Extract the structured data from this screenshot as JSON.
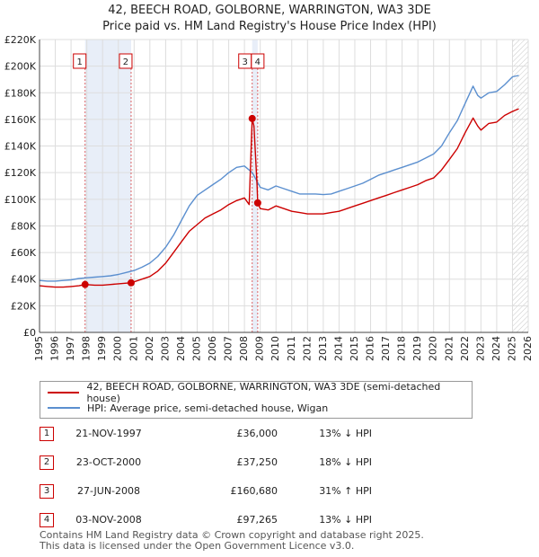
{
  "title_line1": "42, BEECH ROAD, GOLBORNE, WARRINGTON, WA3 3DE",
  "title_line2": "Price paid vs. HM Land Registry's House Price Index (HPI)",
  "colors": {
    "property": "#cc0000",
    "hpi": "#5b8fcf",
    "shade": "#e8eef8",
    "grid": "#dddddd"
  },
  "chart_data": {
    "type": "line",
    "title": "42, BEECH ROAD, GOLBORNE, WARRINGTON, WA3 3DE — Price paid vs. HM Land Registry's House Price Index (HPI)",
    "xlabel": "",
    "ylabel": "",
    "xlim": [
      1995,
      2026
    ],
    "ylim": [
      0,
      220000
    ],
    "x_ticks": [
      1995,
      1996,
      1997,
      1998,
      1999,
      2000,
      2001,
      2002,
      2003,
      2004,
      2005,
      2006,
      2007,
      2008,
      2009,
      2010,
      2011,
      2012,
      2013,
      2014,
      2015,
      2016,
      2017,
      2018,
      2019,
      2020,
      2021,
      2022,
      2023,
      2024,
      2025,
      2026
    ],
    "y_ticks": [
      {
        "value": 0,
        "label": "£0"
      },
      {
        "value": 20000,
        "label": "£20K"
      },
      {
        "value": 40000,
        "label": "£40K"
      },
      {
        "value": 60000,
        "label": "£60K"
      },
      {
        "value": 80000,
        "label": "£80K"
      },
      {
        "value": 100000,
        "label": "£100K"
      },
      {
        "value": 120000,
        "label": "£120K"
      },
      {
        "value": 140000,
        "label": "£140K"
      },
      {
        "value": 160000,
        "label": "£160K"
      },
      {
        "value": 180000,
        "label": "£180K"
      },
      {
        "value": 200000,
        "label": "£200K"
      },
      {
        "value": 220000,
        "label": "£220K"
      }
    ],
    "shaded_ranges": [
      [
        1997.89,
        2000.81
      ],
      [
        2008.49,
        2008.84
      ]
    ],
    "hatched_from": 2025.0,
    "series": [
      {
        "name": "42, BEECH ROAD, GOLBORNE, WARRINGTON, WA3 3DE (semi-detached house)",
        "color": "#cc0000",
        "points": [
          [
            1995.0,
            35000
          ],
          [
            1995.5,
            34500
          ],
          [
            1996.0,
            34000
          ],
          [
            1996.5,
            34000
          ],
          [
            1997.0,
            34500
          ],
          [
            1997.5,
            35000
          ],
          [
            1997.89,
            36000
          ],
          [
            1998.5,
            35500
          ],
          [
            1999.0,
            35500
          ],
          [
            1999.5,
            36000
          ],
          [
            2000.0,
            36500
          ],
          [
            2000.5,
            37000
          ],
          [
            2000.81,
            37250
          ],
          [
            2001.0,
            38000
          ],
          [
            2001.5,
            40000
          ],
          [
            2002.0,
            42000
          ],
          [
            2002.5,
            46000
          ],
          [
            2003.0,
            52000
          ],
          [
            2003.5,
            60000
          ],
          [
            2004.0,
            68000
          ],
          [
            2004.5,
            76000
          ],
          [
            2005.0,
            81000
          ],
          [
            2005.5,
            86000
          ],
          [
            2006.0,
            89000
          ],
          [
            2006.5,
            92000
          ],
          [
            2007.0,
            96000
          ],
          [
            2007.5,
            99000
          ],
          [
            2008.0,
            101000
          ],
          [
            2008.3,
            96000
          ],
          [
            2008.49,
            160680
          ],
          [
            2008.6,
            155000
          ],
          [
            2008.8,
            110000
          ],
          [
            2008.84,
            97265
          ],
          [
            2009.0,
            93000
          ],
          [
            2009.5,
            92000
          ],
          [
            2010.0,
            95000
          ],
          [
            2010.5,
            93000
          ],
          [
            2011.0,
            91000
          ],
          [
            2011.5,
            90000
          ],
          [
            2012.0,
            89000
          ],
          [
            2012.5,
            89000
          ],
          [
            2013.0,
            89000
          ],
          [
            2013.5,
            90000
          ],
          [
            2014.0,
            91000
          ],
          [
            2014.5,
            93000
          ],
          [
            2015.0,
            95000
          ],
          [
            2015.5,
            97000
          ],
          [
            2016.0,
            99000
          ],
          [
            2016.5,
            101000
          ],
          [
            2017.0,
            103000
          ],
          [
            2017.5,
            105000
          ],
          [
            2018.0,
            107000
          ],
          [
            2018.5,
            109000
          ],
          [
            2019.0,
            111000
          ],
          [
            2019.5,
            114000
          ],
          [
            2020.0,
            116000
          ],
          [
            2020.5,
            122000
          ],
          [
            2021.0,
            130000
          ],
          [
            2021.5,
            138000
          ],
          [
            2022.0,
            150000
          ],
          [
            2022.5,
            161000
          ],
          [
            2022.8,
            155000
          ],
          [
            2023.0,
            152000
          ],
          [
            2023.5,
            157000
          ],
          [
            2024.0,
            158000
          ],
          [
            2024.5,
            163000
          ],
          [
            2025.0,
            166000
          ],
          [
            2025.4,
            168000
          ]
        ]
      },
      {
        "name": "HPI: Average price, semi-detached house, Wigan",
        "color": "#5b8fcf",
        "points": [
          [
            1995.0,
            39000
          ],
          [
            1995.5,
            38500
          ],
          [
            1996.0,
            38500
          ],
          [
            1996.5,
            39000
          ],
          [
            1997.0,
            39500
          ],
          [
            1997.5,
            40500
          ],
          [
            1998.0,
            41000
          ],
          [
            1998.5,
            41500
          ],
          [
            1999.0,
            42000
          ],
          [
            1999.5,
            42500
          ],
          [
            2000.0,
            43500
          ],
          [
            2000.5,
            45000
          ],
          [
            2001.0,
            46500
          ],
          [
            2001.5,
            49000
          ],
          [
            2002.0,
            52000
          ],
          [
            2002.5,
            57000
          ],
          [
            2003.0,
            64000
          ],
          [
            2003.5,
            73000
          ],
          [
            2004.0,
            84000
          ],
          [
            2004.5,
            95000
          ],
          [
            2005.0,
            103000
          ],
          [
            2005.5,
            107000
          ],
          [
            2006.0,
            111000
          ],
          [
            2006.5,
            115000
          ],
          [
            2007.0,
            120000
          ],
          [
            2007.5,
            124000
          ],
          [
            2008.0,
            125000
          ],
          [
            2008.5,
            120000
          ],
          [
            2009.0,
            109000
          ],
          [
            2009.5,
            107000
          ],
          [
            2010.0,
            110000
          ],
          [
            2010.5,
            108000
          ],
          [
            2011.0,
            106000
          ],
          [
            2011.5,
            104000
          ],
          [
            2012.0,
            104000
          ],
          [
            2012.5,
            104000
          ],
          [
            2013.0,
            103500
          ],
          [
            2013.5,
            104000
          ],
          [
            2014.0,
            106000
          ],
          [
            2014.5,
            108000
          ],
          [
            2015.0,
            110000
          ],
          [
            2015.5,
            112000
          ],
          [
            2016.0,
            115000
          ],
          [
            2016.5,
            118000
          ],
          [
            2017.0,
            120000
          ],
          [
            2017.5,
            122000
          ],
          [
            2018.0,
            124000
          ],
          [
            2018.5,
            126000
          ],
          [
            2019.0,
            128000
          ],
          [
            2019.5,
            131000
          ],
          [
            2020.0,
            134000
          ],
          [
            2020.5,
            140000
          ],
          [
            2021.0,
            150000
          ],
          [
            2021.5,
            159000
          ],
          [
            2022.0,
            172000
          ],
          [
            2022.5,
            185000
          ],
          [
            2022.8,
            178000
          ],
          [
            2023.0,
            176000
          ],
          [
            2023.5,
            180000
          ],
          [
            2024.0,
            181000
          ],
          [
            2024.5,
            186000
          ],
          [
            2025.0,
            192000
          ],
          [
            2025.4,
            193000
          ]
        ]
      }
    ],
    "markers": [
      {
        "label": "1",
        "x": 1997.89,
        "value": 36000
      },
      {
        "label": "2",
        "x": 2000.81,
        "value": 37250
      },
      {
        "label": "3",
        "x": 2008.49,
        "value": 160680
      },
      {
        "label": "4",
        "x": 2008.84,
        "value": 97265
      }
    ]
  },
  "legend": {
    "property": "42, BEECH ROAD, GOLBORNE, WARRINGTON, WA3 3DE (semi-detached house)",
    "hpi": "HPI: Average price, semi-detached house, Wigan"
  },
  "sales": [
    {
      "num": "1",
      "date": "21-NOV-1997",
      "price": "£36,000",
      "hpi": "13% ↓ HPI"
    },
    {
      "num": "2",
      "date": "23-OCT-2000",
      "price": "£37,250",
      "hpi": "18% ↓ HPI"
    },
    {
      "num": "3",
      "date": "27-JUN-2008",
      "price": "£160,680",
      "hpi": "31% ↑ HPI"
    },
    {
      "num": "4",
      "date": "03-NOV-2008",
      "price": "£97,265",
      "hpi": "13% ↓ HPI"
    }
  ],
  "footer": {
    "line1": "Contains HM Land Registry data © Crown copyright and database right 2025.",
    "line2": "This data is licensed under the Open Government Licence v3.0."
  }
}
